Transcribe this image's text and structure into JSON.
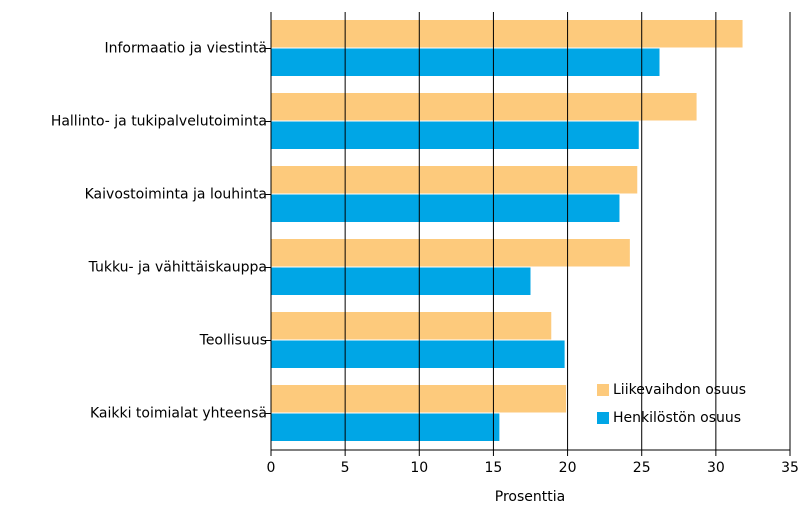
{
  "chart_data": {
    "type": "barh",
    "categories": [
      "Informaatio ja viestintä",
      "Hallinto- ja tukipalvelutoiminta",
      "Kaivostoiminta ja louhinta",
      "Tukku- ja vähittäiskauppa",
      "Teollisuus",
      "Kaikki toimialat yhteensä"
    ],
    "series": [
      {
        "name": "Liikevaihdon osuus",
        "color": "#fdca7c",
        "values": [
          31.8,
          28.7,
          24.7,
          24.2,
          18.9,
          19.9
        ]
      },
      {
        "name": "Henkilöstön osuus",
        "color": "#00a6e6",
        "values": [
          26.2,
          24.8,
          23.5,
          17.5,
          19.8,
          15.4
        ]
      }
    ],
    "x_label": "Prosenttia",
    "xlim": [
      0,
      35
    ],
    "xticks": [
      0,
      5,
      10,
      15,
      20,
      25,
      30,
      35
    ],
    "grid": true,
    "legend": "lower right"
  }
}
